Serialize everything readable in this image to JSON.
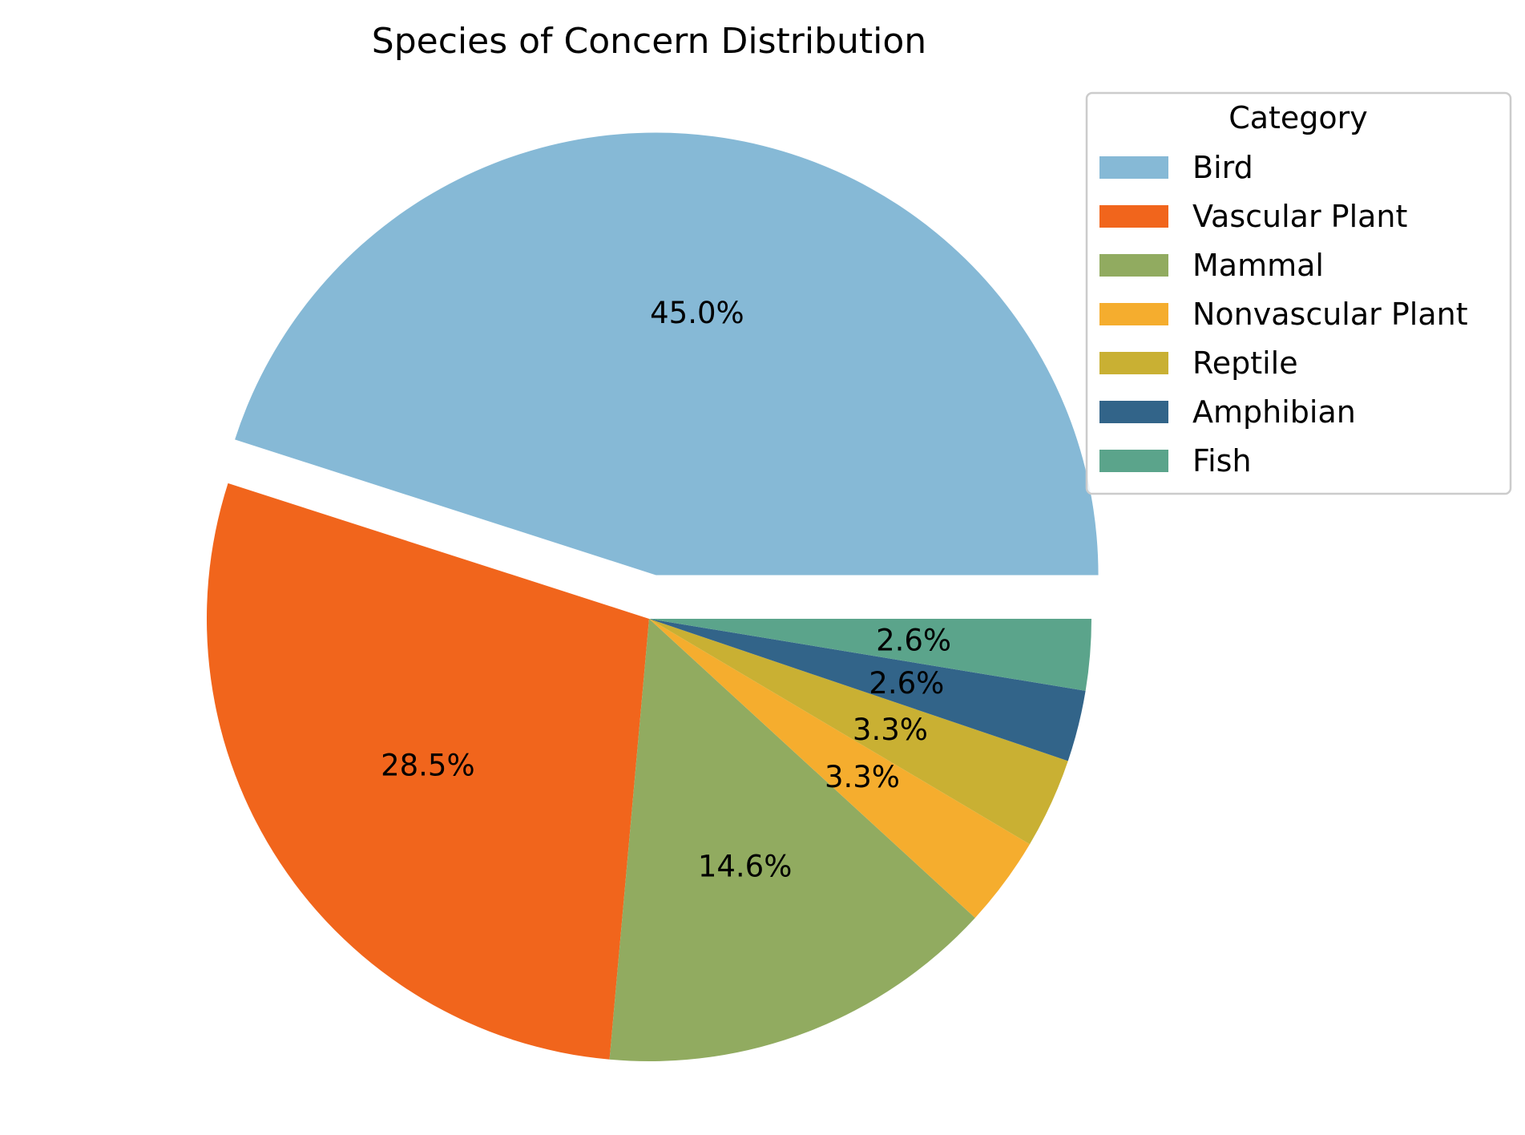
{
  "chart_data": {
    "type": "pie",
    "title": "Species of Concern Distribution",
    "legend": {
      "title": "Category",
      "placement": "top-right"
    },
    "start_angle_deg": 0,
    "direction": "counterclockwise",
    "exploded": [
      "Bird"
    ],
    "slices": [
      {
        "label": "Bird",
        "value": 45.0,
        "display": "45.0%",
        "color": "#86B9D6"
      },
      {
        "label": "Vascular Plant",
        "value": 28.5,
        "display": "28.5%",
        "color": "#F1651C"
      },
      {
        "label": "Mammal",
        "value": 14.6,
        "display": "14.6%",
        "color": "#91AB60"
      },
      {
        "label": "Nonvascular Plant",
        "value": 3.3,
        "display": "3.3%",
        "color": "#F5AD2E"
      },
      {
        "label": "Reptile",
        "value": 3.3,
        "display": "3.3%",
        "color": "#C9B033"
      },
      {
        "label": "Amphibian",
        "value": 2.6,
        "display": "2.6%",
        "color": "#326489"
      },
      {
        "label": "Fish",
        "value": 2.6,
        "display": "2.6%",
        "color": "#5BA48B"
      }
    ]
  }
}
